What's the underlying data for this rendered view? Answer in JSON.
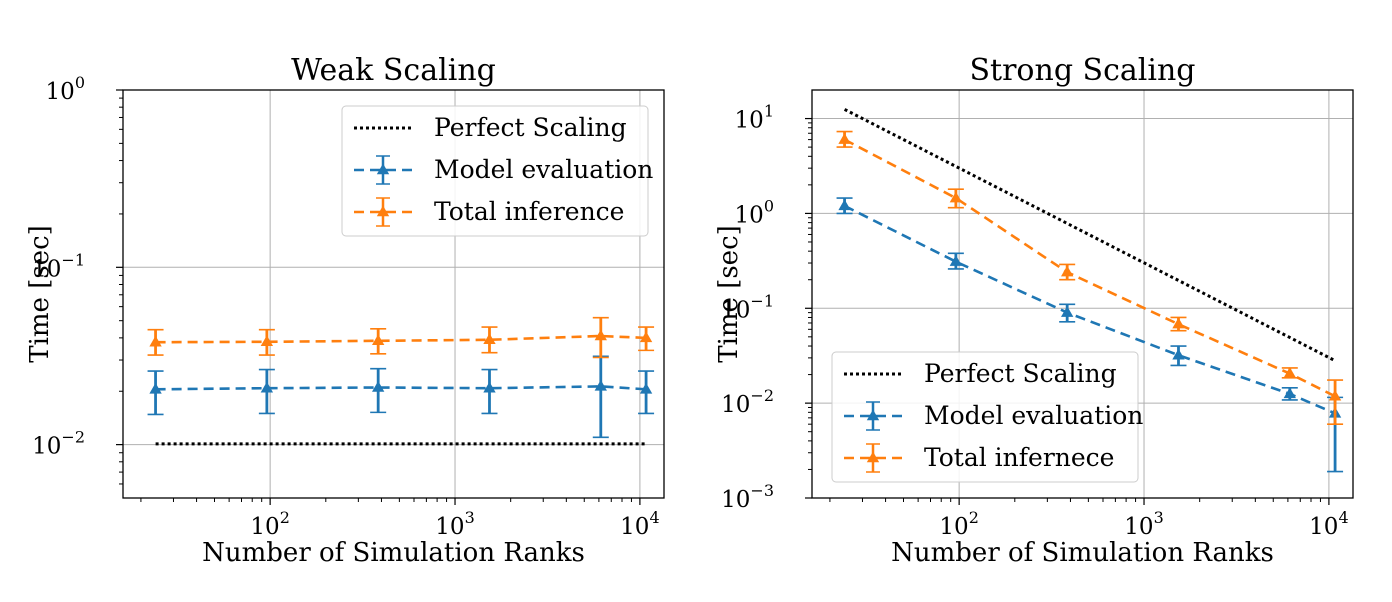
{
  "chart_data": [
    {
      "type": "line",
      "title": "Weak Scaling",
      "xlabel": "Number of Simulation Ranks",
      "ylabel": "Time [sec]",
      "xscale": "log",
      "yscale": "log",
      "xlim": [
        16,
        13500
      ],
      "ylim": [
        0.005,
        1
      ],
      "xticks": [
        {
          "v": 100,
          "b": "10",
          "e": "2"
        },
        {
          "v": 1000,
          "b": "10",
          "e": "3"
        },
        {
          "v": 10000,
          "b": "10",
          "e": "4"
        }
      ],
      "yticks": [
        {
          "v": 0.01,
          "b": "10",
          "e": "−2"
        },
        {
          "v": 0.1,
          "b": "10",
          "e": "−1"
        },
        {
          "v": 1,
          "b": "10",
          "e": "0"
        }
      ],
      "grid": true,
      "legend_position": "upper right",
      "series": [
        {
          "name": "Perfect Scaling",
          "style": "dotted",
          "color": "#000000",
          "x": [
            24,
            10800
          ],
          "y": [
            0.0101,
            0.0101
          ]
        },
        {
          "name": "Model evaluation",
          "style": "dashed-errorbar",
          "color": "#1f77b4",
          "x": [
            24,
            96,
            384,
            1536,
            6144,
            10800
          ],
          "y": [
            0.0205,
            0.0208,
            0.021,
            0.0208,
            0.0213,
            0.0205
          ],
          "err_low": [
            0.0148,
            0.015,
            0.0152,
            0.015,
            0.011,
            0.015
          ],
          "err_high": [
            0.026,
            0.0265,
            0.0268,
            0.0265,
            0.0315,
            0.026
          ]
        },
        {
          "name": "Total inference",
          "style": "dashed-errorbar",
          "color": "#ff7f0e",
          "x": [
            24,
            96,
            384,
            1536,
            6144,
            10800
          ],
          "y": [
            0.0378,
            0.038,
            0.0385,
            0.039,
            0.041,
            0.04
          ],
          "err_low": [
            0.032,
            0.032,
            0.0325,
            0.033,
            0.031,
            0.034
          ],
          "err_high": [
            0.0445,
            0.0445,
            0.045,
            0.046,
            0.052,
            0.046
          ]
        }
      ]
    },
    {
      "type": "line",
      "title": "Strong Scaling",
      "xlabel": "Number of Simulation Ranks",
      "ylabel": "Time [sec]",
      "xscale": "log",
      "yscale": "log",
      "xlim": [
        16,
        13500
      ],
      "ylim": [
        0.001,
        20
      ],
      "xticks": [
        {
          "v": 100,
          "b": "10",
          "e": "2"
        },
        {
          "v": 1000,
          "b": "10",
          "e": "3"
        },
        {
          "v": 10000,
          "b": "10",
          "e": "4"
        }
      ],
      "yticks": [
        {
          "v": 0.001,
          "b": "10",
          "e": "−3"
        },
        {
          "v": 0.01,
          "b": "10",
          "e": "−2"
        },
        {
          "v": 0.1,
          "b": "10",
          "e": "−1"
        },
        {
          "v": 1,
          "b": "10",
          "e": "0"
        },
        {
          "v": 10,
          "b": "10",
          "e": "1"
        }
      ],
      "grid": true,
      "legend_position": "lower left",
      "series": [
        {
          "name": "Perfect Scaling",
          "style": "dotted",
          "color": "#000000",
          "x": [
            24,
            10800
          ],
          "y": [
            12.5,
            0.028
          ]
        },
        {
          "name": "Model evaluation",
          "style": "dashed-errorbar",
          "color": "#1f77b4",
          "x": [
            24,
            96,
            384,
            1536,
            6144,
            10800
          ],
          "y": [
            1.2,
            0.31,
            0.09,
            0.032,
            0.0125,
            0.0078
          ],
          "err_low": [
            1.0,
            0.26,
            0.072,
            0.025,
            0.0108,
            0.0019
          ],
          "err_high": [
            1.45,
            0.38,
            0.11,
            0.04,
            0.0145,
            0.0115
          ]
        },
        {
          "name": "Total infernece",
          "style": "dashed-errorbar",
          "color": "#ff7f0e",
          "x": [
            24,
            96,
            384,
            1536,
            6144,
            10800
          ],
          "y": [
            6.0,
            1.45,
            0.24,
            0.068,
            0.0205,
            0.0118
          ],
          "err_low": [
            5.0,
            1.15,
            0.2,
            0.058,
            0.0185,
            0.006
          ],
          "err_high": [
            7.3,
            1.8,
            0.29,
            0.08,
            0.0235,
            0.0175
          ]
        }
      ]
    }
  ]
}
